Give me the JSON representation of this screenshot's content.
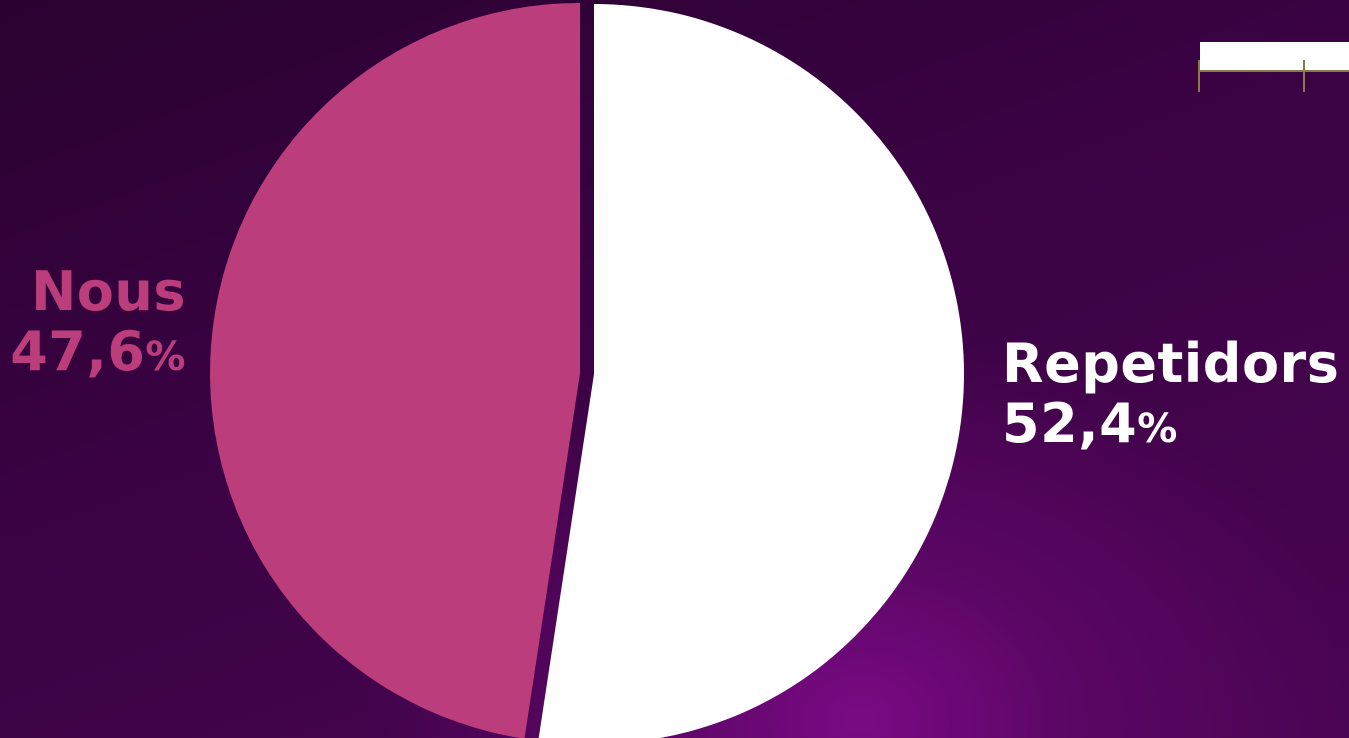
{
  "chart_data": {
    "type": "pie",
    "slices": [
      {
        "label": "Repetidors",
        "value": 52.4,
        "display": "52,4",
        "unit": "%",
        "color": "#ffffff",
        "exploded": false
      },
      {
        "label": "Nous",
        "value": 47.6,
        "display": "47,6",
        "unit": "%",
        "color": "#bc3d7b",
        "exploded": true
      }
    ],
    "start_angle": "12 o'clock",
    "direction": "clockwise",
    "legend": "none",
    "labels_outside": true
  },
  "colors": {
    "background_dark": "#2a0230",
    "background_glow": "#7a0a84",
    "nous_text": "#bc3d7b",
    "repetidors_text": "#ffffff",
    "scale_widget_line": "#8a7a4a"
  },
  "icons": {
    "scale_widget": "scale-bar-icon"
  }
}
